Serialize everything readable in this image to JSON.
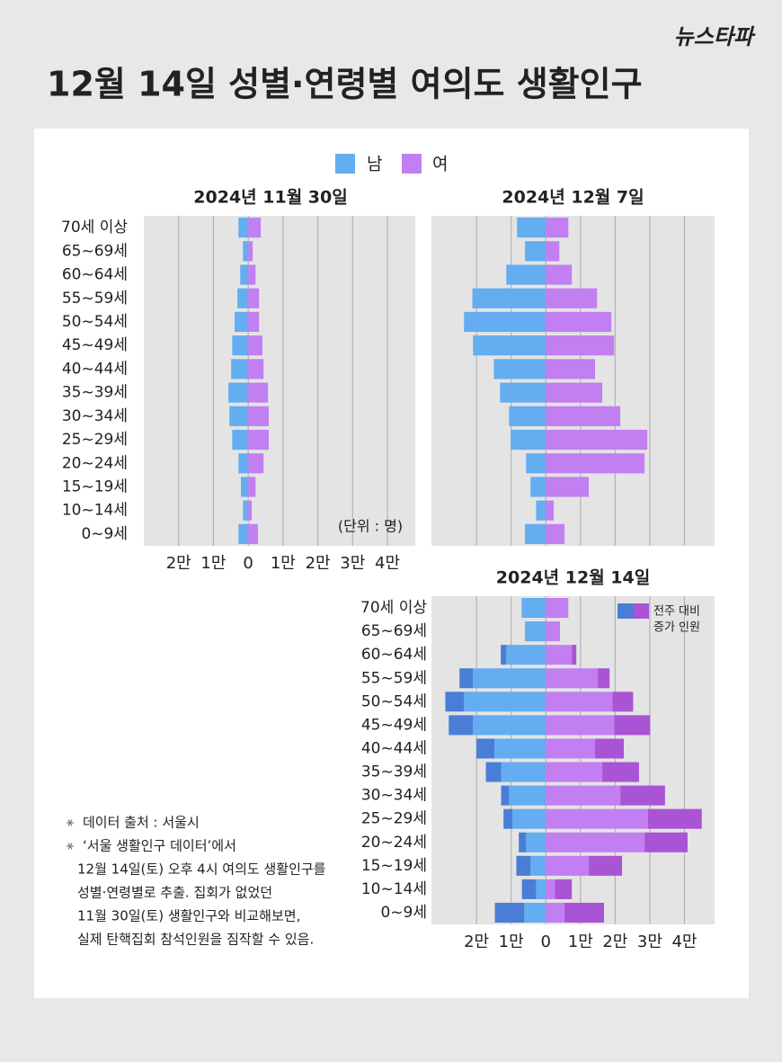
{
  "title": "12월 14일 성별·연령별 여의도 생활인구",
  "logo": "뉴스타파",
  "notes": [
    [
      "데이터 출처 : 서울시"
    ],
    [
      "‘서울 생활인구 데이터’에서",
      "12월 14일(토) 오후 4시 여의도 생활인구를",
      "성별·연령별로 추출. 집회가 없었던",
      "11월 30일(토) 생활인구와 비교해보면,",
      "실제 탄핵집회 참석인원을 짐작할 수 있음."
    ]
  ],
  "chart_data": [
    {
      "type": "bar",
      "orientation": "horizontal",
      "title": "2024년 11월 30일",
      "unit_label": "(단위 : 명)",
      "categories": [
        "70세 이상",
        "65~69세",
        "60~64세",
        "55~59세",
        "50~54세",
        "45~49세",
        "40~44세",
        "35~39세",
        "30~34세",
        "25~29세",
        "20~24세",
        "15~19세",
        "10~14세",
        "0~9세"
      ],
      "series": [
        {
          "name": "남",
          "color": "#63adf0",
          "values": [
            -2800,
            -1500,
            -2300,
            -3100,
            -3900,
            -4600,
            -4900,
            -5700,
            -5400,
            -4600,
            -2800,
            -2100,
            -1500,
            -2800
          ]
        },
        {
          "name": "여",
          "color": "#c27ff2",
          "values": [
            3600,
            1300,
            2100,
            3100,
            3100,
            4100,
            4400,
            5700,
            5900,
            5900,
            4400,
            2100,
            1000,
            2800
          ]
        }
      ],
      "xlim": [
        -30000,
        48000
      ],
      "xticks": [
        {
          "value": -20000,
          "label": "2만"
        },
        {
          "value": -10000,
          "label": "1만"
        },
        0,
        {
          "value": 10000,
          "label": "1만"
        },
        {
          "value": 20000,
          "label": "2만"
        },
        {
          "value": 30000,
          "label": "3만"
        },
        {
          "value": 40000,
          "label": "4만"
        }
      ],
      "grid": true,
      "tick_labels": true
    },
    {
      "type": "bar",
      "orientation": "horizontal",
      "title": "2024년 12월 7일",
      "series": [
        {
          "color": "#63adf0",
          "values": [
            -8300,
            -6000,
            -11400,
            -21200,
            -23600,
            -21000,
            -15000,
            -13200,
            -10600,
            -10100,
            -5700,
            -4400,
            -2800,
            -6000
          ]
        },
        {
          "color": "#c27ff2",
          "values": [
            6500,
            3900,
            7500,
            14800,
            18900,
            19700,
            14200,
            16300,
            21500,
            29300,
            28500,
            12400,
            2300,
            5400
          ]
        }
      ],
      "xlim": [
        -33000,
        48700
      ],
      "xticks": [
        -20000,
        -10000,
        0,
        10000,
        20000,
        30000,
        40000
      ],
      "grid": true,
      "tick_labels": false
    },
    {
      "type": "bar",
      "orientation": "horizontal",
      "title": "2024년 12월 14일",
      "categories": [
        "70세 이상",
        "65~69세",
        "60~64세",
        "55~59세",
        "50~54세",
        "45~49세",
        "40~44세",
        "35~39세",
        "30~34세",
        "25~29세",
        "20~24세",
        "15~19세",
        "10~14세",
        "0~9세"
      ],
      "series": [
        {
          "color": "#63adf0",
          "values": [
            -7000,
            -6000,
            -11400,
            -21000,
            -23600,
            -21000,
            -14800,
            -12900,
            -10600,
            -9600,
            -5700,
            -4400,
            -2800,
            -6200
          ]
        },
        {
          "color": "#c27ff2",
          "values": [
            6500,
            4100,
            7500,
            15000,
            19200,
            19700,
            14200,
            16300,
            21500,
            29500,
            28500,
            12400,
            2600,
            5400
          ]
        },
        {
          "color": "#4a7ed6",
          "values": [
            0,
            0,
            -1600,
            -3900,
            -5400,
            -7000,
            -5200,
            -4400,
            -2300,
            -2600,
            -2100,
            -4100,
            -4100,
            -8500
          ]
        },
        {
          "color": "#a954d4",
          "values": [
            0,
            0,
            1300,
            3400,
            6000,
            10400,
            8300,
            10600,
            12900,
            15500,
            12400,
            9600,
            4900,
            11400
          ]
        }
      ],
      "increase_legend": [
        "전주 대비",
        "증가 인원"
      ],
      "xlim": [
        -33000,
        48700
      ],
      "xticks": [
        {
          "value": -20000,
          "label": "2만"
        },
        {
          "value": -10000,
          "label": "1만"
        },
        0,
        {
          "value": 10000,
          "label": "1만"
        },
        {
          "value": 20000,
          "label": "2만"
        },
        {
          "value": 30000,
          "label": "3만"
        },
        {
          "value": 40000,
          "label": "4만"
        }
      ],
      "grid": true,
      "tick_labels": true
    }
  ]
}
